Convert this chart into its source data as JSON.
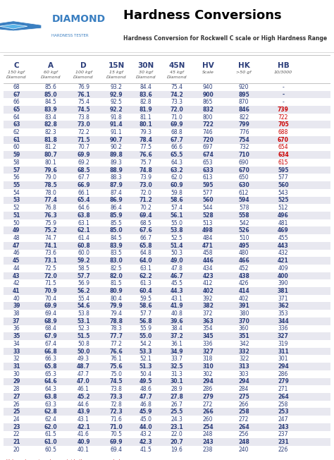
{
  "title": "Hardness Conversions",
  "subtitle": "Hardness Conversion for Rockwell C scale or High Hardness Range",
  "columns": [
    "C",
    "A",
    "D",
    "15N",
    "30N",
    "45N",
    "HV",
    "HK",
    "HB"
  ],
  "col_subtitles": [
    "150 kgf\nDiamond",
    "60 kgf\nDiamond",
    "100 kgf\nDiamond",
    "15 kgf\nDiamond",
    "30 kgf\nDiamond",
    "45 kgf\nDiamond",
    "Scale",
    ">50 gf",
    "10/3000"
  ],
  "rows": [
    [
      68,
      85.6,
      76.9,
      93.2,
      84.4,
      75.4,
      940,
      920,
      "-"
    ],
    [
      67,
      85.0,
      76.1,
      92.9,
      83.6,
      74.2,
      900,
      895,
      "-"
    ],
    [
      66,
      84.5,
      75.4,
      92.5,
      82.8,
      73.3,
      865,
      870,
      "-"
    ],
    [
      65,
      83.9,
      74.5,
      92.2,
      81.9,
      72.0,
      832,
      846,
      "739"
    ],
    [
      64,
      83.4,
      73.8,
      91.8,
      81.1,
      71.0,
      800,
      822,
      "722"
    ],
    [
      63,
      82.8,
      73.0,
      91.4,
      80.1,
      69.9,
      722,
      799,
      "705"
    ],
    [
      62,
      82.3,
      72.2,
      91.1,
      79.3,
      68.8,
      746,
      776,
      "688"
    ],
    [
      61,
      81.8,
      71.5,
      90.7,
      78.4,
      67.7,
      720,
      754,
      "670"
    ],
    [
      60,
      81.2,
      70.7,
      90.2,
      77.5,
      66.6,
      697,
      732,
      "654"
    ],
    [
      59,
      80.7,
      69.9,
      89.8,
      76.6,
      65.5,
      674,
      710,
      "634"
    ],
    [
      58,
      80.1,
      69.2,
      89.3,
      75.7,
      64.3,
      653,
      690,
      "615"
    ],
    [
      57,
      79.6,
      68.5,
      88.9,
      74.8,
      63.2,
      633,
      670,
      "595"
    ],
    [
      56,
      79.0,
      67.7,
      88.3,
      73.9,
      62.0,
      613,
      650,
      "577"
    ],
    [
      55,
      78.5,
      66.9,
      87.9,
      73.0,
      60.9,
      595,
      630,
      "560"
    ],
    [
      54,
      78.0,
      66.1,
      87.4,
      72.0,
      59.8,
      577,
      612,
      "543"
    ],
    [
      53,
      77.4,
      65.4,
      86.9,
      71.2,
      58.6,
      560,
      594,
      "525"
    ],
    [
      52,
      76.8,
      64.6,
      86.4,
      70.2,
      57.4,
      544,
      578,
      "512"
    ],
    [
      51,
      76.3,
      63.8,
      85.9,
      69.4,
      56.1,
      528,
      558,
      "496"
    ],
    [
      50,
      75.9,
      63.1,
      85.5,
      68.5,
      55.0,
      513,
      542,
      "481"
    ],
    [
      49,
      75.2,
      62.1,
      85.0,
      67.6,
      53.8,
      498,
      526,
      "469"
    ],
    [
      48,
      74.7,
      61.4,
      84.5,
      66.7,
      52.5,
      484,
      510,
      "455"
    ],
    [
      47,
      74.1,
      60.8,
      83.9,
      65.8,
      51.4,
      471,
      495,
      "443"
    ],
    [
      46,
      73.6,
      60.0,
      83.5,
      64.8,
      50.3,
      458,
      480,
      "432"
    ],
    [
      45,
      73.1,
      59.2,
      83.0,
      64.0,
      49.0,
      446,
      466,
      "421"
    ],
    [
      44,
      72.5,
      58.5,
      82.5,
      63.1,
      47.8,
      434,
      452,
      "409"
    ],
    [
      43,
      72.0,
      57.7,
      82.0,
      62.2,
      46.7,
      423,
      438,
      "400"
    ],
    [
      42,
      71.5,
      56.9,
      81.5,
      61.3,
      45.5,
      412,
      426,
      "390"
    ],
    [
      41,
      70.9,
      56.2,
      80.9,
      60.4,
      44.3,
      402,
      414,
      "381"
    ],
    [
      40,
      70.4,
      55.4,
      80.4,
      59.5,
      43.1,
      392,
      402,
      "371"
    ],
    [
      39,
      69.9,
      54.6,
      79.9,
      58.6,
      41.9,
      382,
      391,
      "362"
    ],
    [
      38,
      69.4,
      53.8,
      79.4,
      57.7,
      40.8,
      372,
      380,
      "353"
    ],
    [
      37,
      68.9,
      53.1,
      78.8,
      56.8,
      39.6,
      363,
      370,
      "344"
    ],
    [
      36,
      68.4,
      52.3,
      78.3,
      55.9,
      38.4,
      354,
      360,
      "336"
    ],
    [
      35,
      67.9,
      51.5,
      77.7,
      55.0,
      37.2,
      345,
      351,
      "327"
    ],
    [
      34,
      67.4,
      50.8,
      77.2,
      54.2,
      36.1,
      336,
      342,
      "319"
    ],
    [
      33,
      66.8,
      50.0,
      76.6,
      53.3,
      34.9,
      327,
      332,
      "311"
    ],
    [
      32,
      66.3,
      49.3,
      76.1,
      52.1,
      33.7,
      318,
      322,
      "301"
    ],
    [
      31,
      65.8,
      48.7,
      75.6,
      51.3,
      32.5,
      310,
      313,
      "294"
    ],
    [
      30,
      65.3,
      47.7,
      75.0,
      50.4,
      31.3,
      302,
      303,
      "286"
    ],
    [
      29,
      64.6,
      47.0,
      74.5,
      49.5,
      30.1,
      294,
      294,
      "279"
    ],
    [
      28,
      64.3,
      46.1,
      73.8,
      48.6,
      28.9,
      286,
      284,
      "271"
    ],
    [
      27,
      63.8,
      45.2,
      73.3,
      47.7,
      27.8,
      279,
      275,
      "264"
    ],
    [
      26,
      63.3,
      44.6,
      72.8,
      46.8,
      26.7,
      272,
      266,
      "258"
    ],
    [
      25,
      62.8,
      43.9,
      72.3,
      45.9,
      25.5,
      266,
      258,
      "253"
    ],
    [
      24,
      62.4,
      43.1,
      71.6,
      45.0,
      24.3,
      260,
      272,
      "247"
    ],
    [
      23,
      62.0,
      42.1,
      71.0,
      44.0,
      23.1,
      254,
      264,
      "243"
    ],
    [
      22,
      61.5,
      41.6,
      70.5,
      43.2,
      22.0,
      248,
      256,
      "237"
    ],
    [
      21,
      61.0,
      40.9,
      69.9,
      42.3,
      20.7,
      243,
      248,
      "231"
    ],
    [
      20,
      60.5,
      40.1,
      69.4,
      41.5,
      19.6,
      238,
      240,
      "226"
    ]
  ],
  "red_rows": [
    4,
    5,
    6,
    7,
    8,
    9,
    10,
    11
  ],
  "shaded_rows": [
    1,
    3,
    5,
    7,
    9,
    11,
    13,
    15,
    17,
    19,
    21,
    23,
    25,
    27,
    29,
    31,
    33,
    35,
    37,
    39,
    41,
    43,
    45,
    47
  ],
  "header_bg": "#ffffff",
  "shaded_bg": "#e8e8f0",
  "normal_bg": "#ffffff",
  "text_color_dark": "#2c3e7a",
  "text_color_red": "#cc0000",
  "diamond_color_primary": "#3a7fc1",
  "diamond_color_secondary": "#5ab4e8"
}
